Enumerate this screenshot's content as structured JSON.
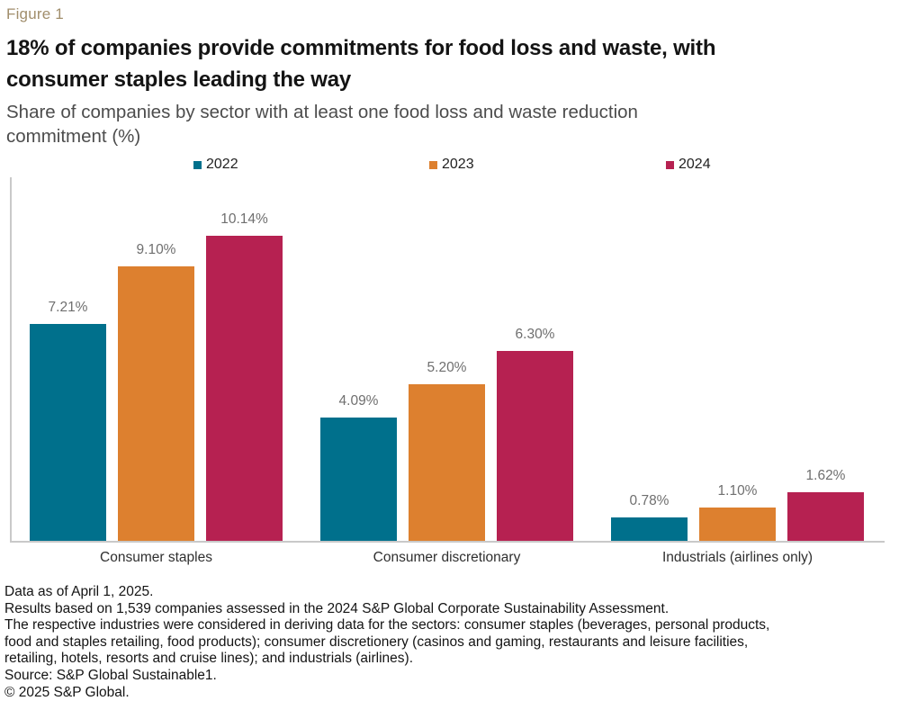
{
  "figure_label": "Figure 1",
  "title_lines": [
    "18% of companies provide commitments for food loss and waste, with",
    "consumer staples leading the way"
  ],
  "subtitle_lines": [
    "Share of companies by sector with at least one food loss and waste reduction",
    "commitment (%)"
  ],
  "chart_data": {
    "type": "bar",
    "title": "18% of companies provide commitments for food loss and waste, with consumer staples leading the way",
    "subtitle": "Share of companies by sector with at least one food loss and waste reduction commitment (%)",
    "categories": [
      "Consumer staples",
      "Consumer discretionary",
      "Industrials (airlines only)"
    ],
    "series": [
      {
        "name": "2022",
        "color": "#00708c",
        "values": [
          7.21,
          4.09,
          0.78
        ]
      },
      {
        "name": "2023",
        "color": "#dd802f",
        "values": [
          9.1,
          5.2,
          1.1
        ]
      },
      {
        "name": "2024",
        "color": "#b62151",
        "values": [
          10.14,
          6.3,
          1.62
        ]
      }
    ],
    "value_labels": [
      [
        "7.21%",
        "4.09%",
        "0.78%"
      ],
      [
        "9.10%",
        "5.20%",
        "1.10%"
      ],
      [
        "10.14%",
        "6.30%",
        "1.62%"
      ]
    ],
    "ylim": [
      0,
      12.1
    ],
    "grid": false,
    "legend_position": "top",
    "value_label_suffix": "%"
  },
  "footer_lines": [
    "Data as of April 1, 2025.",
    "Results based on 1,539 companies assessed in the 2024 S&P Global Corporate Sustainability Assessment.",
    "The respective industries were considered in deriving data for the sectors: consumer staples (beverages, personal products,",
    "food and staples retailing, food products); consumer discretionery (casinos and gaming, restaurants and leisure facilities,",
    "retailing, hotels, resorts and cruise lines); and industrials (airlines).",
    "Source: S&P Global Sustainable1.",
    "© 2025 S&P Global."
  ],
  "colors": {
    "figure_label": "#a18e6c",
    "title": "#141414",
    "subtitle": "#4c4c4c",
    "axis": "#c9c9c9",
    "value_label": "#6f6f6f",
    "category_label": "#2f2f2f"
  }
}
